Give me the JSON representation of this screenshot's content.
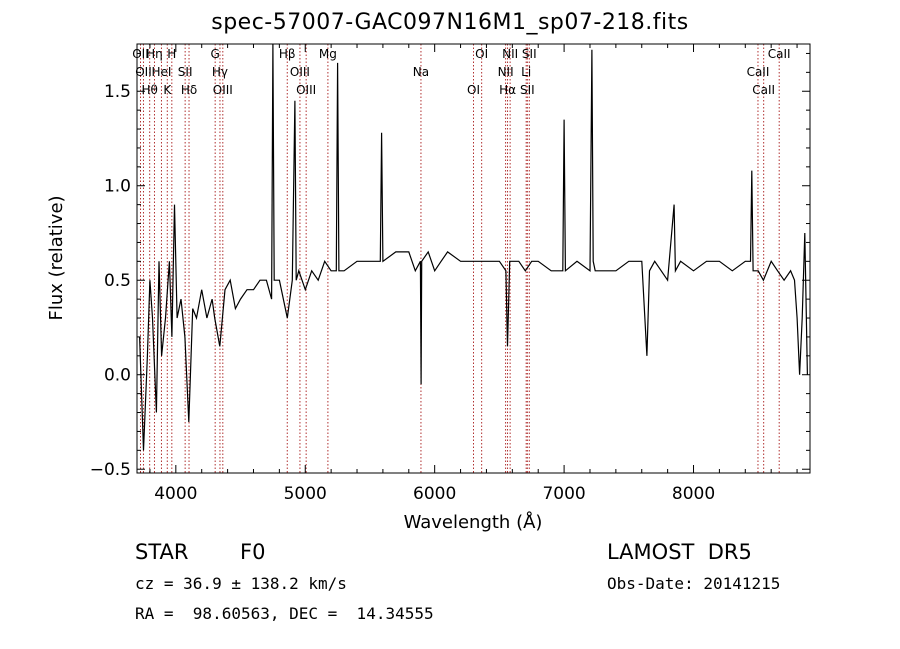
{
  "chart_data": {
    "type": "line",
    "title": "spec-57007-GAC097N16M1_sp07-218.fits",
    "xlabel": "Wavelength (Å)",
    "ylabel": "Flux (relative)",
    "xlim": [
      3700,
      8900
    ],
    "ylim": [
      -0.52,
      1.75
    ],
    "xticks": [
      4000,
      5000,
      6000,
      7000,
      8000
    ],
    "xtick_labels": [
      "4000",
      "5000",
      "6000",
      "7000",
      "8000"
    ],
    "yticks": [
      -0.5,
      0.0,
      0.5,
      1.0,
      1.5
    ],
    "ytick_labels": [
      "−0.5",
      "0.0",
      "0.5",
      "1.0",
      "1.5"
    ],
    "grid": false,
    "series": [
      {
        "x": [
          3720,
          3750,
          3780,
          3800,
          3820,
          3850,
          3870,
          3890,
          3920,
          3950,
          3970,
          3990,
          4010,
          4040,
          4070,
          4100,
          4130,
          4160,
          4200,
          4240,
          4280,
          4300,
          4340,
          4380,
          4420,
          4460,
          4500,
          4550,
          4600,
          4650,
          4700,
          4740,
          4750,
          4760,
          4800,
          4861,
          4900,
          4920,
          4930,
          4950,
          5000,
          5050,
          5100,
          5150,
          5200,
          5240,
          5250,
          5260,
          5300,
          5400,
          5500,
          5580,
          5590,
          5600,
          5700,
          5800,
          5850,
          5890,
          5895,
          5900,
          5950,
          6000,
          6050,
          6100,
          6200,
          6300,
          6400,
          6500,
          6550,
          6563,
          6580,
          6600,
          6650,
          6700,
          6750,
          6800,
          6900,
          6990,
          7000,
          7010,
          7100,
          7200,
          7215,
          7225,
          7240,
          7300,
          7400,
          7500,
          7600,
          7640,
          7660,
          7700,
          7800,
          7850,
          7860,
          7900,
          8000,
          8100,
          8200,
          8300,
          8400,
          8440,
          8450,
          8460,
          8500,
          8540,
          8600,
          8650,
          8700,
          8750,
          8780,
          8800,
          8820,
          8840,
          8860,
          8880
        ],
        "y": [
          0.2,
          -0.4,
          0.1,
          0.5,
          0.3,
          -0.2,
          0.6,
          0.1,
          0.3,
          0.6,
          0.2,
          0.9,
          0.3,
          0.4,
          0.2,
          -0.25,
          0.35,
          0.3,
          0.45,
          0.3,
          0.4,
          0.3,
          0.15,
          0.45,
          0.5,
          0.35,
          0.4,
          0.45,
          0.45,
          0.5,
          0.5,
          0.4,
          1.75,
          0.5,
          0.5,
          0.3,
          0.5,
          1.45,
          0.5,
          0.55,
          0.45,
          0.55,
          0.5,
          0.6,
          0.55,
          0.55,
          1.65,
          0.55,
          0.55,
          0.6,
          0.6,
          0.6,
          1.28,
          0.6,
          0.65,
          0.65,
          0.55,
          0.6,
          -0.05,
          0.6,
          0.65,
          0.55,
          0.6,
          0.65,
          0.6,
          0.6,
          0.6,
          0.6,
          0.55,
          0.15,
          0.6,
          0.6,
          0.6,
          0.55,
          0.6,
          0.6,
          0.55,
          0.55,
          1.35,
          0.55,
          0.6,
          0.55,
          1.72,
          0.6,
          0.55,
          0.55,
          0.55,
          0.6,
          0.6,
          0.1,
          0.55,
          0.6,
          0.5,
          0.9,
          0.55,
          0.6,
          0.55,
          0.6,
          0.6,
          0.55,
          0.6,
          0.6,
          1.08,
          0.55,
          0.55,
          0.5,
          0.6,
          0.55,
          0.5,
          0.55,
          0.5,
          0.3,
          0.0,
          0.3,
          0.75,
          0.0
        ]
      }
    ],
    "lines": [
      {
        "x": 3727,
        "labels": [
          "OII"
        ]
      },
      {
        "x": 3750,
        "labels": [
          "OII"
        ]
      },
      {
        "x": 3798,
        "labels": [
          "Hθ"
        ]
      },
      {
        "x": 3835,
        "labels": [
          "Hη"
        ]
      },
      {
        "x": 3889,
        "labels": [
          "HeI"
        ]
      },
      {
        "x": 3934,
        "labels": [
          "K"
        ]
      },
      {
        "x": 3969,
        "labels": [
          "H"
        ]
      },
      {
        "x": 4072,
        "labels": [
          "SII"
        ]
      },
      {
        "x": 4102,
        "labels": [
          "Hδ"
        ]
      },
      {
        "x": 4304,
        "labels": [
          "G"
        ]
      },
      {
        "x": 4341,
        "labels": [
          "Hγ"
        ]
      },
      {
        "x": 4363,
        "labels": [
          "OIII"
        ]
      },
      {
        "x": 4861,
        "labels": [
          "Hβ"
        ]
      },
      {
        "x": 4959,
        "labels": [
          "OIII"
        ]
      },
      {
        "x": 5007,
        "labels": [
          "OIII"
        ]
      },
      {
        "x": 5175,
        "labels": [
          "Mg"
        ]
      },
      {
        "x": 5894,
        "labels": [
          "Na"
        ]
      },
      {
        "x": 6300,
        "labels": [
          "OI"
        ]
      },
      {
        "x": 6363,
        "labels": [
          "OI"
        ]
      },
      {
        "x": 6548,
        "labels": [
          "NII"
        ]
      },
      {
        "x": 6563,
        "labels": [
          "Hα"
        ]
      },
      {
        "x": 6583,
        "labels": [
          "NII"
        ]
      },
      {
        "x": 6707,
        "labels": [
          "Li"
        ]
      },
      {
        "x": 6716,
        "labels": [
          "SII"
        ]
      },
      {
        "x": 6731,
        "labels": [
          "SII"
        ]
      },
      {
        "x": 8498,
        "labels": [
          "CaII"
        ]
      },
      {
        "x": 8542,
        "labels": [
          "CaII"
        ]
      },
      {
        "x": 8662,
        "labels": [
          "CaII"
        ]
      }
    ],
    "line_labels": [
      "OII",
      "OII",
      "Hθ",
      "Hη",
      "HeI",
      "K",
      "H",
      "SII",
      "Hδ",
      "G",
      "Hγ",
      "OIII",
      "Hβ",
      "OIII",
      "OIII",
      "Mg",
      "Na",
      "OI",
      "OI",
      "NII",
      "Hα",
      "NII",
      "Li",
      "SII",
      "SII",
      "CaII",
      "CaII",
      "CaII"
    ]
  },
  "info": {
    "class_label": "STAR",
    "subclass": "F0",
    "survey": "LAMOST  DR5",
    "cz": "cz = 36.9 ± 138.2 km/s",
    "obs_date": "Obs-Date: 20141215",
    "radec": "RA =  98.60563, DEC =  14.34555"
  },
  "colors": {
    "line_marker": "#b03030",
    "spectrum": "#000000"
  }
}
